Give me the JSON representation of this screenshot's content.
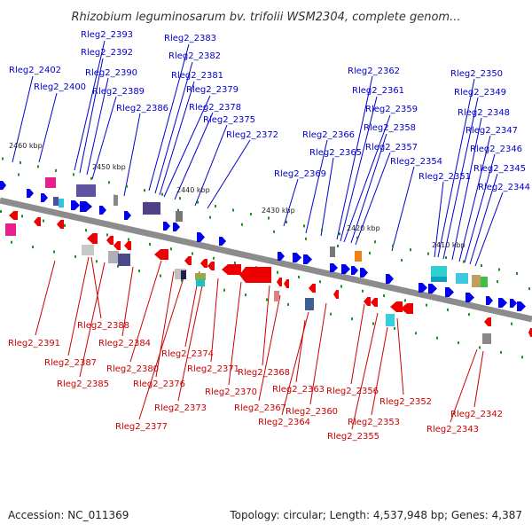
{
  "title": "Rhizobium leguminosarum bv. trifolii WSM2304, complete genom...",
  "footer": {
    "accession": "Accession: NC_011369",
    "summary": "Topology: circular; Length: 4,537,948 bp; Genes: 4,387"
  },
  "colors": {
    "forward_gene": "#0000ee",
    "reverse_gene": "#ee0000",
    "backbone": "#8c8c8c",
    "ticks": "#228b22",
    "top_label": "#0000cc",
    "bottom_label": "#cc0000"
  },
  "scale_ticks": [
    "2460 kbp",
    "2450 kbp",
    "2440 kbp",
    "2430 kbp",
    "2420 kbp",
    "2410 kbp"
  ],
  "top_labels": [
    "Rleg2_2402",
    "Rleg2_2400",
    "Rleg2_2393",
    "Rleg2_2392",
    "Rleg2_2390",
    "Rleg2_2389",
    "Rleg2_2386",
    "Rleg2_2383",
    "Rleg2_2382",
    "Rleg2_2381",
    "Rleg2_2379",
    "Rleg2_2378",
    "Rleg2_2375",
    "Rleg2_2372",
    "Rleg2_2369",
    "Rleg2_2366",
    "Rleg2_2365",
    "Rleg2_2362",
    "Rleg2_2361",
    "Rleg2_2359",
    "Rleg2_2358",
    "Rleg2_2357",
    "Rleg2_2354",
    "Rleg2_2351",
    "Rleg2_2350",
    "Rleg2_2349",
    "Rleg2_2348",
    "Rleg2_2347",
    "Rleg2_2346",
    "Rleg2_2345",
    "Rleg2_2344"
  ],
  "bottom_labels": [
    "Rleg2_2391",
    "Rleg2_2388",
    "Rleg2_2387",
    "Rleg2_2385",
    "Rleg2_2384",
    "Rleg2_2380",
    "Rleg2_2377",
    "Rleg2_2376",
    "Rleg2_2374",
    "Rleg2_2373",
    "Rleg2_2371",
    "Rleg2_2370",
    "Rleg2_2368",
    "Rleg2_2367",
    "Rleg2_2364",
    "Rleg2_2363",
    "Rleg2_2360",
    "Rleg2_2356",
    "Rleg2_2355",
    "Rleg2_2353",
    "Rleg2_2352",
    "Rleg2_2343",
    "Rleg2_2342"
  ]
}
